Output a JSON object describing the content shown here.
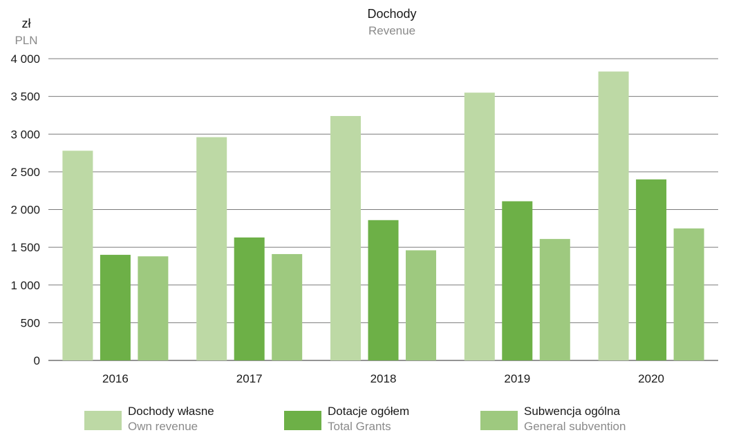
{
  "chart_data": {
    "type": "bar",
    "title": "Dochody",
    "subtitle": "Revenue",
    "ylabel": "zł",
    "ylabel_sub": "PLN",
    "ylim": [
      0,
      4000
    ],
    "yticks": [
      0,
      500,
      1000,
      1500,
      2000,
      2500,
      3000,
      3500,
      4000
    ],
    "ytick_labels": [
      "0",
      "500",
      "1 000",
      "1 500",
      "2 000",
      "2 500",
      "3 000",
      "3 500",
      "4 000"
    ],
    "categories": [
      "2016",
      "2017",
      "2018",
      "2019",
      "2020"
    ],
    "grid": true,
    "legend_position": "bottom",
    "series": [
      {
        "name": "Dochody własne",
        "name_sub": "Own revenue",
        "color": "#bdd9a5",
        "values": [
          2780,
          2960,
          3240,
          3550,
          3830
        ]
      },
      {
        "name": "Dotacje ogółem",
        "name_sub": "Total Grants",
        "color": "#6db047",
        "values": [
          1400,
          1630,
          1860,
          2110,
          2400
        ]
      },
      {
        "name": "Subwencja ogólna",
        "name_sub": "General subvention",
        "color": "#9ec97f",
        "values": [
          1380,
          1410,
          1460,
          1610,
          1750
        ]
      }
    ]
  }
}
